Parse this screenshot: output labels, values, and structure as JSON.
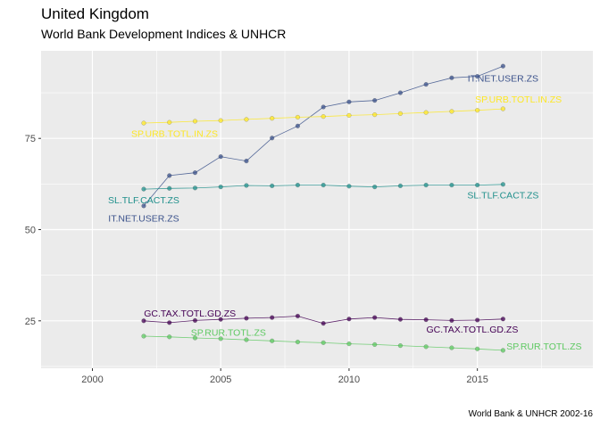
{
  "chart_data": {
    "type": "line",
    "title": "United Kingdom",
    "subtitle": "World Bank Development Indices & UNHCR",
    "caption": "World Bank & UNHCR 2002-16",
    "xlabel": "",
    "ylabel": "",
    "xlim": [
      1998,
      2019.5
    ],
    "ylim": [
      12,
      99
    ],
    "x_ticks": [
      2000,
      2005,
      2010,
      2015
    ],
    "y_ticks": [
      25,
      50,
      75
    ],
    "grid": true,
    "legend": "none",
    "background": "#ebebeb",
    "x": [
      2002,
      2003,
      2004,
      2005,
      2006,
      2007,
      2008,
      2009,
      2010,
      2011,
      2012,
      2013,
      2014,
      2015,
      2016
    ],
    "series": [
      {
        "name": "IT.NET.USER.ZS",
        "color": "#3b528b",
        "values": [
          56.5,
          64.8,
          65.6,
          70.0,
          68.8,
          75.1,
          78.4,
          83.6,
          85.0,
          85.4,
          87.5,
          89.8,
          91.6,
          92.0,
          94.8
        ],
        "labels": [
          {
            "text": "IT.NET.USER.ZS",
            "x": 2002,
            "y": 53.2,
            "anchor": "middle"
          },
          {
            "text": "IT.NET.USER.ZS",
            "x": 2016,
            "y": 91.6,
            "anchor": "middle"
          }
        ]
      },
      {
        "name": "SP.URB.TOTL.IN.ZS",
        "color": "#fde725",
        "values": [
          79.2,
          79.4,
          79.7,
          79.9,
          80.2,
          80.5,
          80.8,
          81.0,
          81.3,
          81.5,
          81.8,
          82.1,
          82.4,
          82.7,
          83.1
        ],
        "labels": [
          {
            "text": "SP.URB.TOTL.IN.ZS",
            "x": 2003.2,
            "y": 76.4,
            "anchor": "middle"
          },
          {
            "text": "SP.URB.TOTL.IN.ZS",
            "x": 2016.6,
            "y": 85.8,
            "anchor": "middle"
          }
        ]
      },
      {
        "name": "SL.TLF.CACT.ZS",
        "color": "#21908c",
        "values": [
          61.1,
          61.3,
          61.4,
          61.7,
          62.1,
          62.0,
          62.2,
          62.2,
          61.9,
          61.7,
          62.0,
          62.2,
          62.2,
          62.2,
          62.4
        ],
        "labels": [
          {
            "text": "SL.TLF.CACT.ZS",
            "x": 2002,
            "y": 58.2,
            "anchor": "middle"
          },
          {
            "text": "SL.TLF.CACT.ZS",
            "x": 2016,
            "y": 59.5,
            "anchor": "middle"
          }
        ]
      },
      {
        "name": "GC.TAX.TOTL.GD.ZS",
        "color": "#440154",
        "values": [
          25.0,
          24.5,
          25.1,
          25.4,
          25.7,
          25.9,
          26.3,
          24.3,
          25.5,
          25.9,
          25.4,
          25.3,
          25.1,
          25.2,
          25.5
        ],
        "labels": [
          {
            "text": "GC.TAX.TOTL.GD.ZS",
            "x": 2003.8,
            "y": 27.1,
            "anchor": "middle"
          },
          {
            "text": "GC.TAX.TOTL.GD.ZS",
            "x": 2014.8,
            "y": 22.8,
            "anchor": "middle"
          }
        ]
      },
      {
        "name": "SP.RUR.TOTL.ZS",
        "color": "#5ec962",
        "values": [
          20.8,
          20.6,
          20.3,
          20.1,
          19.8,
          19.5,
          19.2,
          19.0,
          18.7,
          18.5,
          18.2,
          17.9,
          17.6,
          17.3,
          16.9
        ],
        "labels": [
          {
            "text": "SP.RUR.TOTL.ZS",
            "x": 2005.3,
            "y": 21.9,
            "anchor": "middle"
          },
          {
            "text": "SP.RUR.TOTL.ZS",
            "x": 2017.6,
            "y": 18.1,
            "anchor": "middle"
          }
        ]
      }
    ]
  }
}
